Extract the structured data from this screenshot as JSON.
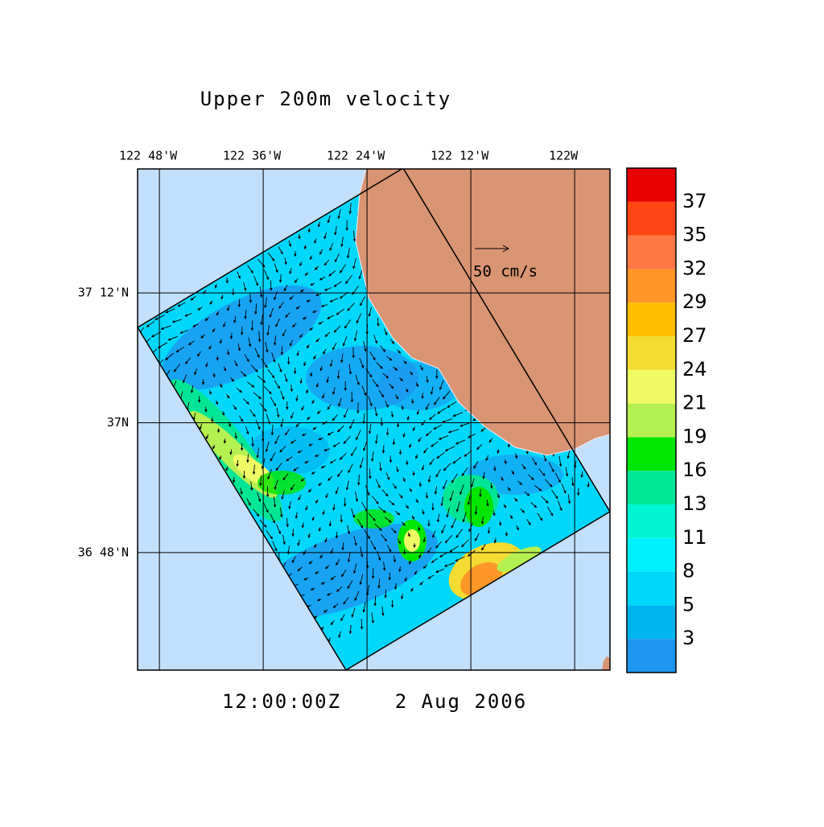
{
  "title": "Upper 200m velocity",
  "time": "12:00:00Z",
  "date": "2 Aug 2006",
  "reference_vector": "50 cm/s",
  "map": {
    "xlim": [
      -122.842,
      -121.932
    ],
    "ylim": [
      36.619,
      37.391
    ],
    "xticks": [
      {
        "value": -122.8,
        "label": "122 48'W"
      },
      {
        "value": -122.6,
        "label": "122 36'W"
      },
      {
        "value": -122.4,
        "label": "122 24'W"
      },
      {
        "value": -122.2,
        "label": "122 12'W"
      },
      {
        "value": -122,
        "label": "122W"
      }
    ],
    "yticks": [
      {
        "value": 37.2,
        "label": "37 12'N"
      },
      {
        "value": 37,
        "label": "37N"
      },
      {
        "value": 36.8,
        "label": "36 48'N"
      }
    ]
  },
  "colorbar": {
    "lim": [
      0,
      40
    ],
    "ticks": [
      {
        "value": 2.667,
        "label": "3"
      },
      {
        "value": 5.333,
        "label": "5"
      },
      {
        "value": 8,
        "label": "8"
      },
      {
        "value": 10.667,
        "label": "11"
      },
      {
        "value": 13.333,
        "label": "13"
      },
      {
        "value": 16,
        "label": "16"
      },
      {
        "value": 18.667,
        "label": "19"
      },
      {
        "value": 21.333,
        "label": "21"
      },
      {
        "value": 24,
        "label": "24"
      },
      {
        "value": 26.667,
        "label": "27"
      },
      {
        "value": 29.333,
        "label": "29"
      },
      {
        "value": 32,
        "label": "32"
      },
      {
        "value": 34.667,
        "label": "35"
      },
      {
        "value": 37.333,
        "label": "37"
      }
    ],
    "colors": [
      "#1e96f0",
      "#00b4f0",
      "#00d7fa",
      "#00f0ff",
      "#00f5d2",
      "#00e696",
      "#00e600",
      "#b4f050",
      "#f0fa64",
      "#f5dc32",
      "#ffbe00",
      "#ff9628",
      "#ff7846",
      "#ff4614",
      "#e60000"
    ]
  }
}
